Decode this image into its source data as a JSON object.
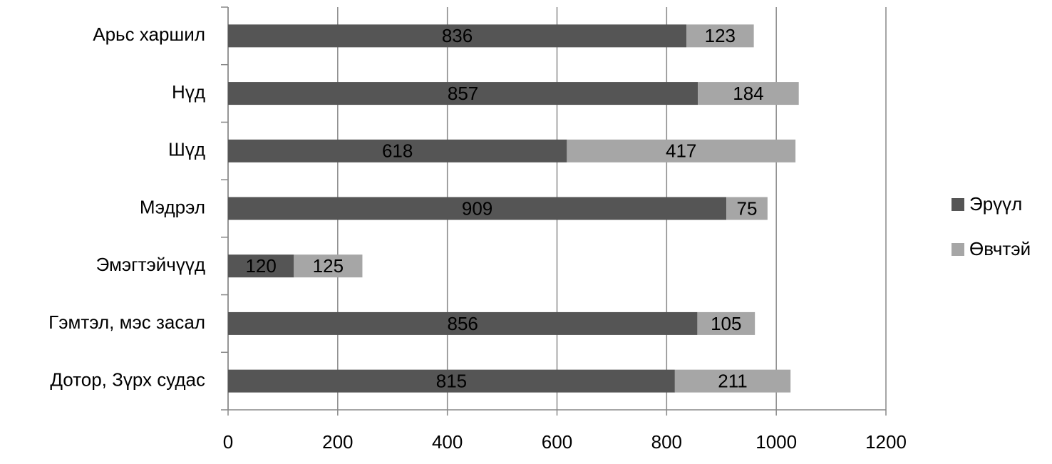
{
  "chart_data": {
    "type": "stacked-barh",
    "categories": [
      "Арьс харшил",
      "Нүд",
      "Шүд",
      "Мэдрэл",
      "Эмэгтэйчүүд",
      "Гэмтэл, мэс засал",
      "Дотор, Зүрх судас"
    ],
    "series": [
      {
        "name": "Эрүүл",
        "color": "#555555",
        "values": [
          836,
          857,
          618,
          909,
          120,
          856,
          815
        ]
      },
      {
        "name": "Өвчтэй",
        "color": "#a6a6a6",
        "values": [
          123,
          184,
          417,
          75,
          125,
          105,
          211
        ]
      }
    ],
    "xlim": [
      0,
      1200
    ],
    "xticks": [
      0,
      200,
      400,
      600,
      800,
      1000,
      1200
    ],
    "grid": true,
    "legend": "right"
  }
}
